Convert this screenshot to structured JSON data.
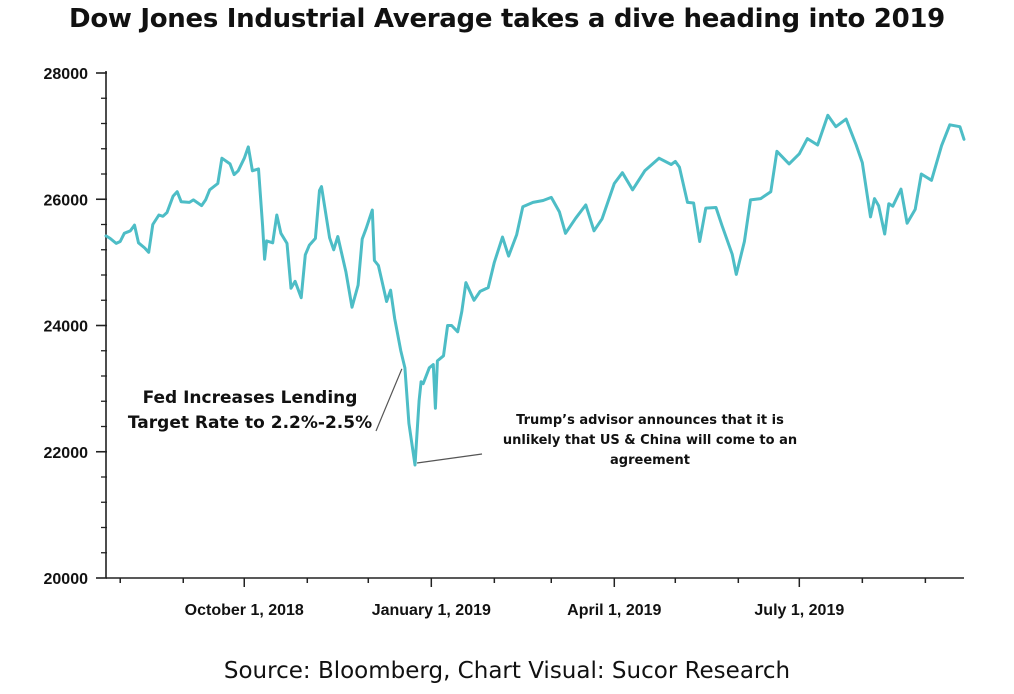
{
  "chart_data": {
    "type": "line",
    "title": "Dow Jones Industrial Average takes a dive heading into 2019",
    "xlabel": "",
    "ylabel": "",
    "ylim": [
      20000,
      28000
    ],
    "xlim": [
      "2018-07-25",
      "2019-09-20"
    ],
    "yticks": [
      20000,
      22000,
      24000,
      26000,
      28000
    ],
    "ytick_labels": [
      "20000",
      "22000",
      "24000",
      "26000",
      "28000"
    ],
    "xticks": [
      "2018-10-01",
      "2019-01-01",
      "2019-04-01",
      "2019-07-01"
    ],
    "xtick_labels": [
      "October 1, 2018",
      "January 1, 2019",
      "April 1, 2019",
      "July 1, 2019"
    ],
    "grid": false,
    "line_color": "#4dbdc6",
    "series": [
      {
        "x": [
          "2018-07-25",
          "2018-07-27",
          "2018-07-30",
          "2018-08-01",
          "2018-08-03",
          "2018-08-06",
          "2018-08-08",
          "2018-08-10",
          "2018-08-13",
          "2018-08-15",
          "2018-08-17",
          "2018-08-20",
          "2018-08-22",
          "2018-08-24",
          "2018-08-27",
          "2018-08-29",
          "2018-08-31",
          "2018-09-04",
          "2018-09-06",
          "2018-09-10",
          "2018-09-12",
          "2018-09-14",
          "2018-09-18",
          "2018-09-20",
          "2018-09-24",
          "2018-09-26",
          "2018-09-28",
          "2018-10-01",
          "2018-10-03",
          "2018-10-05",
          "2018-10-08",
          "2018-10-10",
          "2018-10-11",
          "2018-10-12",
          "2018-10-15",
          "2018-10-17",
          "2018-10-19",
          "2018-10-22",
          "2018-10-24",
          "2018-10-26",
          "2018-10-29",
          "2018-10-31",
          "2018-11-02",
          "2018-11-05",
          "2018-11-07",
          "2018-11-08",
          "2018-11-12",
          "2018-11-14",
          "2018-11-16",
          "2018-11-20",
          "2018-11-23",
          "2018-11-26",
          "2018-11-28",
          "2018-11-30",
          "2018-12-03",
          "2018-12-04",
          "2018-12-06",
          "2018-12-10",
          "2018-12-12",
          "2018-12-14",
          "2018-12-17",
          "2018-12-19",
          "2018-12-21",
          "2018-12-24",
          "2018-12-26",
          "2018-12-27",
          "2018-12-28",
          "2018-12-31",
          "2019-01-02",
          "2019-01-03",
          "2019-01-04",
          "2019-01-07",
          "2019-01-09",
          "2019-01-11",
          "2019-01-14",
          "2019-01-16",
          "2019-01-18",
          "2019-01-22",
          "2019-01-25",
          "2019-01-29",
          "2019-02-01",
          "2019-02-05",
          "2019-02-08",
          "2019-02-12",
          "2019-02-15",
          "2019-02-20",
          "2019-02-25",
          "2019-03-01",
          "2019-03-05",
          "2019-03-08",
          "2019-03-13",
          "2019-03-18",
          "2019-03-22",
          "2019-03-26",
          "2019-04-01",
          "2019-04-05",
          "2019-04-10",
          "2019-04-16",
          "2019-04-23",
          "2019-04-29",
          "2019-05-01",
          "2019-05-03",
          "2019-05-07",
          "2019-05-10",
          "2019-05-13",
          "2019-05-16",
          "2019-05-21",
          "2019-05-24",
          "2019-05-29",
          "2019-05-31",
          "2019-06-04",
          "2019-06-07",
          "2019-06-12",
          "2019-06-17",
          "2019-06-20",
          "2019-06-26",
          "2019-07-01",
          "2019-07-05",
          "2019-07-10",
          "2019-07-15",
          "2019-07-19",
          "2019-07-24",
          "2019-07-29",
          "2019-08-01",
          "2019-08-05",
          "2019-08-07",
          "2019-08-09",
          "2019-08-12",
          "2019-08-14",
          "2019-08-16",
          "2019-08-20",
          "2019-08-23",
          "2019-08-27",
          "2019-08-30",
          "2019-09-04",
          "2019-09-09",
          "2019-09-13",
          "2019-09-18",
          "2019-09-20"
        ],
        "values": [
          25420,
          25380,
          25300,
          25330,
          25460,
          25500,
          25590,
          25310,
          25230,
          25160,
          25600,
          25750,
          25730,
          25790,
          26050,
          26120,
          25960,
          25950,
          25990,
          25900,
          25990,
          26150,
          26250,
          26650,
          26560,
          26390,
          26450,
          26650,
          26830,
          26450,
          26480,
          25580,
          25050,
          25340,
          25310,
          25750,
          25460,
          25300,
          24590,
          24700,
          24440,
          25120,
          25270,
          25380,
          26140,
          26200,
          25390,
          25200,
          25410,
          24850,
          24290,
          24640,
          25370,
          25540,
          25830,
          25030,
          24950,
          24380,
          24560,
          24110,
          23600,
          23330,
          22450,
          21790,
          22810,
          23110,
          23080,
          23330,
          23380,
          22690,
          23440,
          23520,
          24000,
          24000,
          23900,
          24220,
          24680,
          24400,
          24540,
          24600,
          25000,
          25400,
          25100,
          25440,
          25880,
          25950,
          25980,
          26030,
          25800,
          25460,
          25700,
          25910,
          25500,
          25690,
          26250,
          26420,
          26150,
          26450,
          26650,
          26550,
          26600,
          26510,
          25950,
          25940,
          25330,
          25860,
          25870,
          25580,
          25130,
          24810,
          25330,
          25990,
          26010,
          26120,
          26760,
          26560,
          26720,
          26960,
          26860,
          27330,
          27150,
          27270,
          26860,
          26580,
          25720,
          26010,
          25900,
          25450,
          25930,
          25890,
          26160,
          25620,
          25840,
          26400,
          26300,
          26850,
          27180,
          27150,
          26950
        ]
      }
    ],
    "annotations": [
      {
        "lines": [
          "Fed Increases Lending",
          "Target Rate to 2.2%-2.5%"
        ],
        "target": "2018-12-19"
      },
      {
        "lines": [
          "Trump’s advisor announces that it is",
          "unlikely that US & China will come to an",
          "agreement"
        ],
        "target": "2018-12-24"
      }
    ]
  },
  "footer": {
    "source": "Source: Bloomberg,  Chart Visual: Sucor Research"
  }
}
